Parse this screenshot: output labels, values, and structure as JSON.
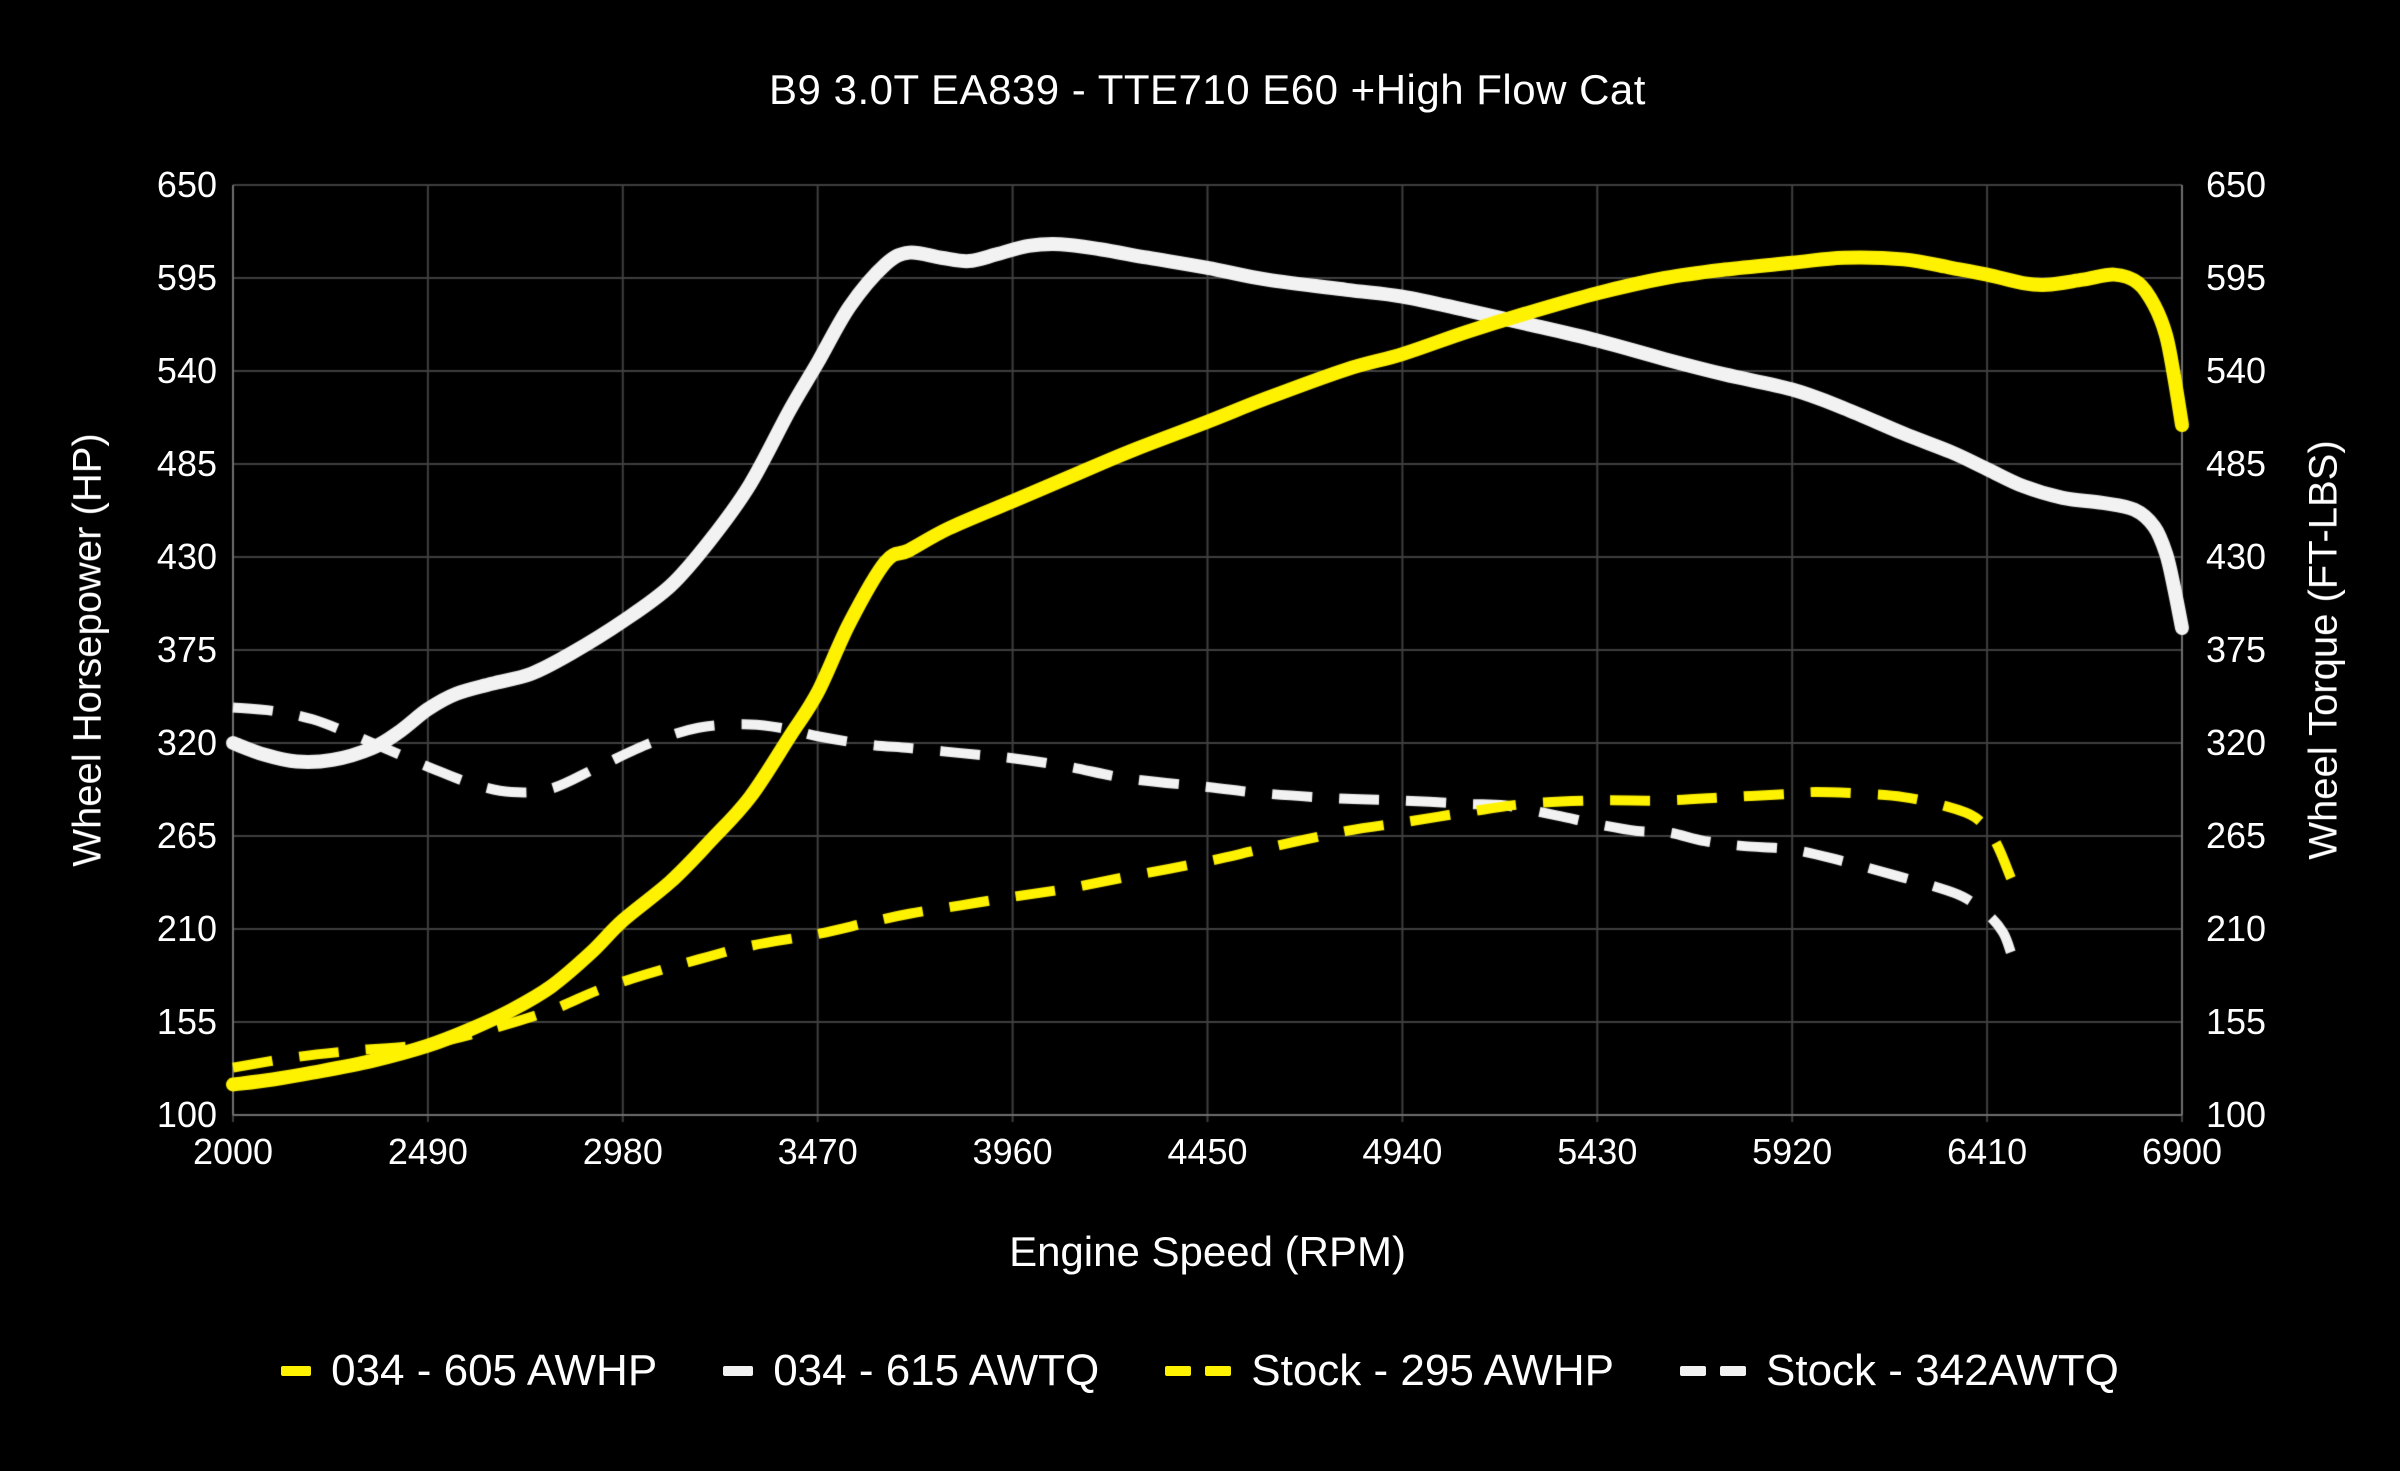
{
  "chart_data": {
    "type": "line",
    "title": "B9 3.0T EA839 - TTE710 E60 +High Flow Cat",
    "xlabel": "Engine Speed (RPM)",
    "ylabel_left": "Wheel Horsepower (HP)",
    "ylabel_right": "Wheel Torque (FT-LBS)",
    "xlim": [
      2000,
      6900
    ],
    "ylim": [
      100,
      650
    ],
    "x_ticks": [
      2000,
      2490,
      2980,
      3470,
      3960,
      4450,
      4940,
      5430,
      5920,
      6410,
      6900
    ],
    "y_ticks": [
      100,
      155,
      210,
      265,
      320,
      375,
      430,
      485,
      540,
      595,
      650
    ],
    "grid": true,
    "legend_position": "bottom",
    "colors": {
      "background": "#000000",
      "grid": "#3f3f3f",
      "axis": "#6f6f6f",
      "text": "#ffffff",
      "yellow": "#fff200",
      "white": "#f2f2f2"
    },
    "series": [
      {
        "name": "034 - 605 AWHP",
        "color": "#fff200",
        "style": "solid",
        "points": [
          [
            2000,
            118
          ],
          [
            2100,
            121
          ],
          [
            2200,
            125
          ],
          [
            2350,
            132
          ],
          [
            2490,
            141
          ],
          [
            2600,
            151
          ],
          [
            2700,
            162
          ],
          [
            2800,
            176
          ],
          [
            2900,
            196
          ],
          [
            2980,
            215
          ],
          [
            3100,
            238
          ],
          [
            3200,
            262
          ],
          [
            3300,
            288
          ],
          [
            3400,
            324
          ],
          [
            3470,
            350
          ],
          [
            3550,
            391
          ],
          [
            3640,
            427
          ],
          [
            3700,
            434
          ],
          [
            3800,
            447
          ],
          [
            3960,
            463
          ],
          [
            4100,
            477
          ],
          [
            4250,
            492
          ],
          [
            4450,
            510
          ],
          [
            4600,
            524
          ],
          [
            4800,
            541
          ],
          [
            4940,
            550
          ],
          [
            5100,
            563
          ],
          [
            5250,
            574
          ],
          [
            5430,
            586
          ],
          [
            5600,
            595
          ],
          [
            5750,
            600
          ],
          [
            5920,
            604
          ],
          [
            6050,
            607
          ],
          [
            6200,
            606
          ],
          [
            6320,
            601
          ],
          [
            6410,
            597
          ],
          [
            6500,
            592
          ],
          [
            6560,
            591
          ],
          [
            6650,
            594
          ],
          [
            6730,
            597
          ],
          [
            6790,
            592
          ],
          [
            6830,
            579
          ],
          [
            6860,
            561
          ],
          [
            6880,
            537
          ],
          [
            6900,
            508
          ]
        ]
      },
      {
        "name": "034 - 615 AWTQ",
        "color": "#f2f2f2",
        "style": "solid",
        "points": [
          [
            2000,
            320
          ],
          [
            2080,
            313
          ],
          [
            2160,
            309
          ],
          [
            2250,
            310
          ],
          [
            2350,
            317
          ],
          [
            2420,
            327
          ],
          [
            2490,
            340
          ],
          [
            2560,
            349
          ],
          [
            2650,
            355
          ],
          [
            2750,
            361
          ],
          [
            2850,
            373
          ],
          [
            2980,
            392
          ],
          [
            3100,
            413
          ],
          [
            3200,
            440
          ],
          [
            3300,
            473
          ],
          [
            3400,
            517
          ],
          [
            3470,
            545
          ],
          [
            3550,
            578
          ],
          [
            3640,
            603
          ],
          [
            3700,
            610
          ],
          [
            3780,
            607
          ],
          [
            3850,
            605
          ],
          [
            3920,
            609
          ],
          [
            4000,
            614
          ],
          [
            4080,
            615
          ],
          [
            4180,
            612
          ],
          [
            4300,
            607
          ],
          [
            4450,
            601
          ],
          [
            4600,
            594
          ],
          [
            4800,
            588
          ],
          [
            4940,
            584
          ],
          [
            5100,
            576
          ],
          [
            5250,
            568
          ],
          [
            5430,
            558
          ],
          [
            5600,
            547
          ],
          [
            5750,
            538
          ],
          [
            5920,
            529
          ],
          [
            6050,
            518
          ],
          [
            6200,
            503
          ],
          [
            6320,
            492
          ],
          [
            6410,
            482
          ],
          [
            6500,
            472
          ],
          [
            6600,
            465
          ],
          [
            6700,
            462
          ],
          [
            6780,
            458
          ],
          [
            6830,
            448
          ],
          [
            6860,
            432
          ],
          [
            6880,
            412
          ],
          [
            6900,
            388
          ]
        ]
      },
      {
        "name": "Stock - 295 AWHP",
        "color": "#fff200",
        "style": "dashed",
        "points": [
          [
            2000,
            128
          ],
          [
            2150,
            134
          ],
          [
            2300,
            138
          ],
          [
            2490,
            142
          ],
          [
            2650,
            151
          ],
          [
            2800,
            162
          ],
          [
            2920,
            174
          ],
          [
            3050,
            184
          ],
          [
            3170,
            192
          ],
          [
            3300,
            200
          ],
          [
            3470,
            207
          ],
          [
            3600,
            214
          ],
          [
            3700,
            219
          ],
          [
            3830,
            224
          ],
          [
            3960,
            229
          ],
          [
            4100,
            234
          ],
          [
            4250,
            241
          ],
          [
            4450,
            250
          ],
          [
            4600,
            258
          ],
          [
            4800,
            268
          ],
          [
            4940,
            273
          ],
          [
            5100,
            279
          ],
          [
            5250,
            284
          ],
          [
            5430,
            286
          ],
          [
            5600,
            286
          ],
          [
            5760,
            288
          ],
          [
            5920,
            290
          ],
          [
            5980,
            291
          ],
          [
            6100,
            290
          ],
          [
            6200,
            288
          ],
          [
            6300,
            283
          ],
          [
            6380,
            276
          ],
          [
            6430,
            262
          ],
          [
            6470,
            240
          ]
        ]
      },
      {
        "name": "Stock - 342AWTQ",
        "color": "#f2f2f2",
        "style": "dashed",
        "points": [
          [
            2000,
            341
          ],
          [
            2100,
            339
          ],
          [
            2200,
            334
          ],
          [
            2300,
            325
          ],
          [
            2400,
            315
          ],
          [
            2500,
            305
          ],
          [
            2600,
            296
          ],
          [
            2700,
            291
          ],
          [
            2800,
            293
          ],
          [
            2920,
            306
          ],
          [
            3050,
            320
          ],
          [
            3170,
            329
          ],
          [
            3300,
            331
          ],
          [
            3400,
            328
          ],
          [
            3470,
            324
          ],
          [
            3600,
            319
          ],
          [
            3700,
            317
          ],
          [
            3830,
            314
          ],
          [
            3960,
            311
          ],
          [
            4100,
            306
          ],
          [
            4250,
            299
          ],
          [
            4450,
            294
          ],
          [
            4600,
            290
          ],
          [
            4800,
            287
          ],
          [
            4940,
            286
          ],
          [
            5100,
            284
          ],
          [
            5200,
            283
          ],
          [
            5330,
            277
          ],
          [
            5430,
            272
          ],
          [
            5530,
            268
          ],
          [
            5610,
            267
          ],
          [
            5700,
            262
          ],
          [
            5800,
            259
          ],
          [
            5920,
            257
          ],
          [
            6050,
            250
          ],
          [
            6190,
            241
          ],
          [
            6280,
            235
          ],
          [
            6350,
            229
          ],
          [
            6410,
            219
          ],
          [
            6450,
            208
          ],
          [
            6470,
            196
          ]
        ]
      }
    ]
  }
}
